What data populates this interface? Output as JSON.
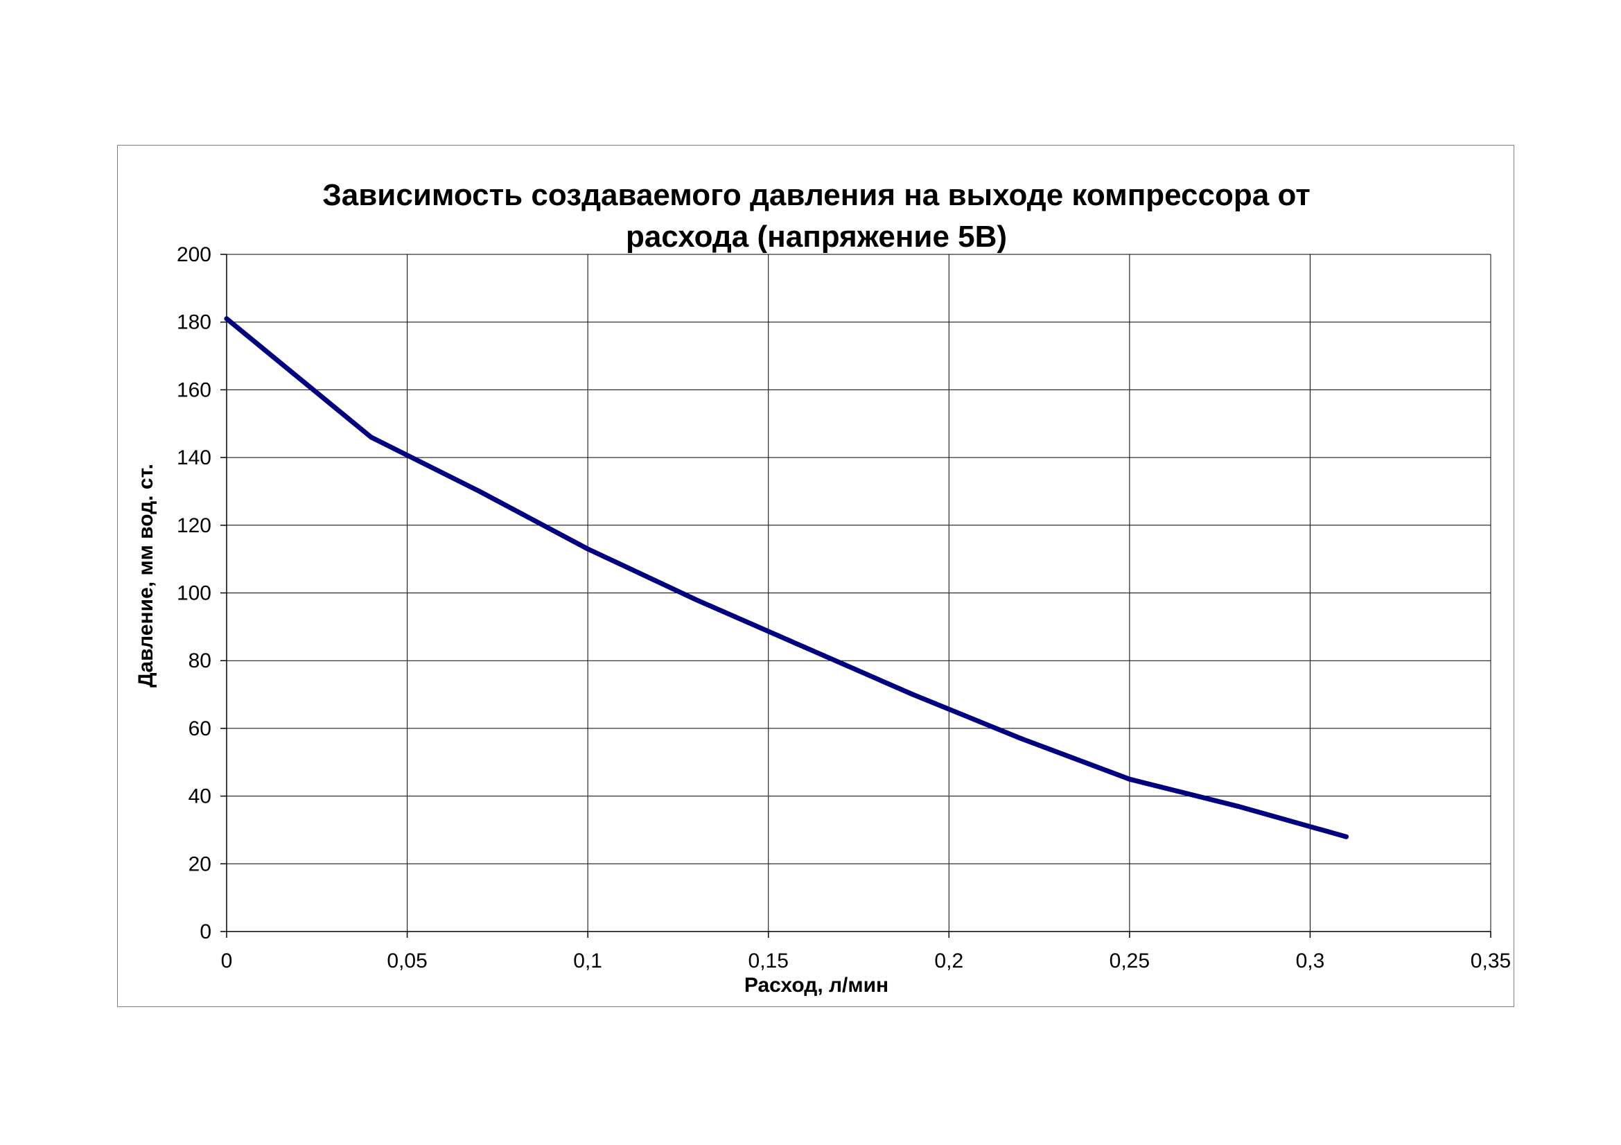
{
  "chart_data": {
    "type": "line",
    "title": "Зависимость создаваемого давления на выходе компрессора от расхода (напряжение 5В)",
    "title_lines": [
      "Зависимость создаваемого давления на выходе компрессора от",
      "расхода (напряжение 5В)"
    ],
    "xlabel": "Расход, л/мин",
    "ylabel": "Давление, мм вод. ст.",
    "xlim": [
      0,
      0.35
    ],
    "ylim": [
      0,
      200
    ],
    "x_ticks": [
      0,
      0.05,
      0.1,
      0.15,
      0.2,
      0.25,
      0.3,
      0.35
    ],
    "x_tick_labels": [
      "0",
      "0,05",
      "0,1",
      "0,15",
      "0,2",
      "0,25",
      "0,3",
      "0,35"
    ],
    "y_ticks": [
      0,
      20,
      40,
      60,
      80,
      100,
      120,
      140,
      160,
      180,
      200
    ],
    "y_tick_labels": [
      "0",
      "20",
      "40",
      "60",
      "80",
      "100",
      "120",
      "140",
      "160",
      "180",
      "200"
    ],
    "grid": true,
    "legend": "none",
    "series": [
      {
        "color": "#000080",
        "x": [
          0,
          0.04,
          0.07,
          0.1,
          0.13,
          0.16,
          0.19,
          0.22,
          0.25,
          0.28,
          0.31
        ],
        "y": [
          181,
          146,
          130,
          113,
          98,
          84,
          70,
          57,
          45,
          37,
          28
        ]
      }
    ]
  }
}
